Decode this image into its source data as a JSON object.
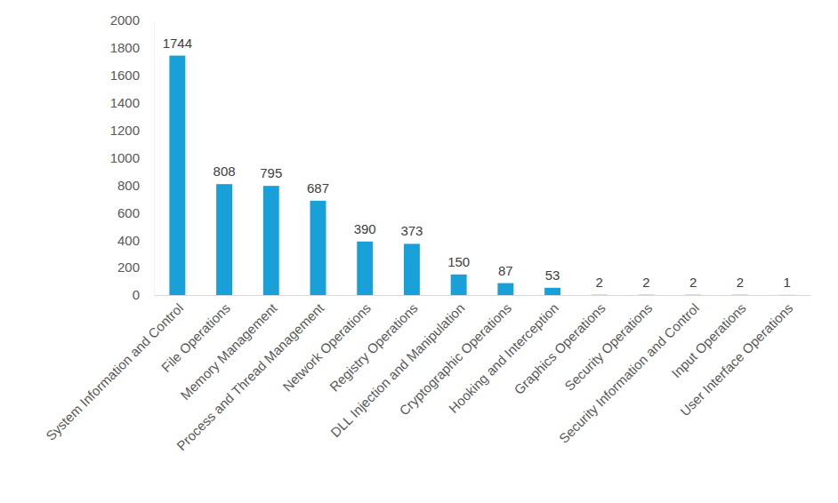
{
  "chart_data": {
    "type": "bar",
    "categories": [
      "System Information and Control",
      "File Operations",
      "Memory Management",
      "Process and Thread Management",
      "Network Operations",
      "Registry Operations",
      "DLL Injection and Manipulation",
      "Cryptographic Operations",
      "Hooking and Interception",
      "Graphics Operations",
      "Security Operations",
      "Security Information and Control",
      "Input Operations",
      "User Interface Operations"
    ],
    "values": [
      1744,
      808,
      795,
      687,
      390,
      373,
      150,
      87,
      53,
      2,
      2,
      2,
      2,
      1
    ],
    "color": "#1AA0D8",
    "ylim": [
      0,
      2000
    ],
    "yticks": [
      0,
      200,
      400,
      600,
      800,
      1000,
      1200,
      1400,
      1600,
      1800,
      2000
    ],
    "grid": false,
    "data_labels": true
  }
}
